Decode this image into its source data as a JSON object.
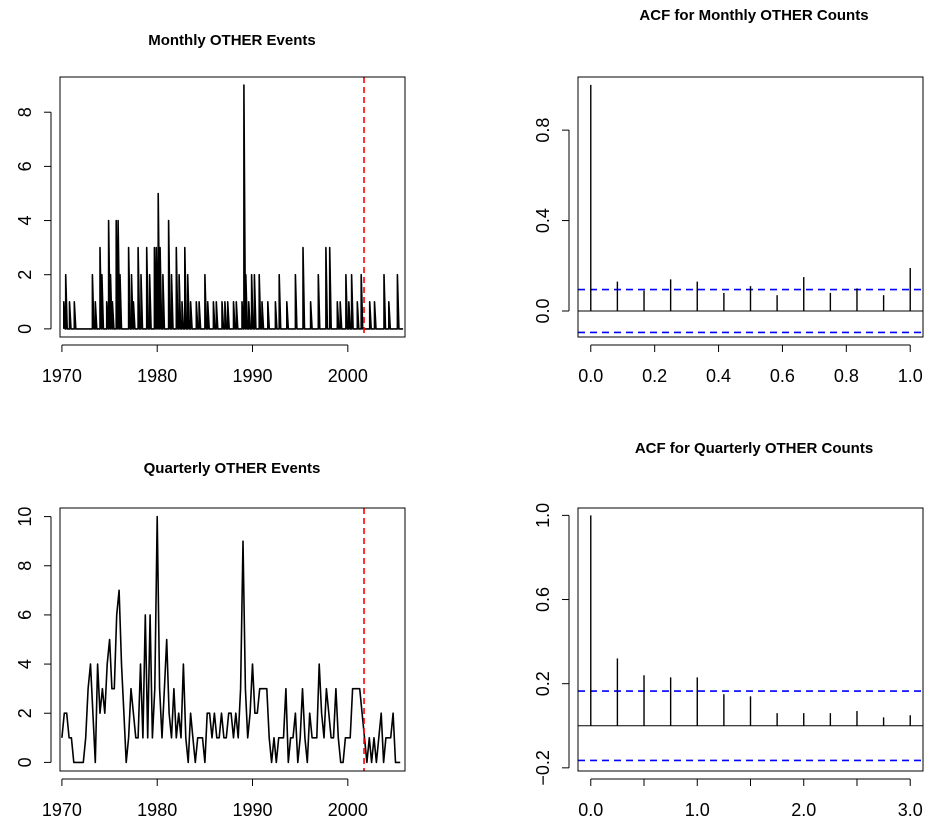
{
  "chart_data": [
    {
      "type": "line",
      "title": "Monthly OTHER Events",
      "xlabel": "",
      "ylabel": "",
      "xlim": [
        1969.8,
        2006.0
      ],
      "ylim": [
        -0.3,
        9.3
      ],
      "xticks": [
        1970,
        1980,
        1990,
        2000
      ],
      "xtick_labels": [
        "1970",
        "1980",
        "1990",
        "2000"
      ],
      "yticks": [
        0,
        2,
        4,
        6,
        8
      ],
      "ytick_labels": [
        "0",
        "2",
        "4",
        "6",
        "8"
      ],
      "series_style": "type-h-like spikes",
      "ref_line": {
        "x": 2001.7,
        "color": "#ff0000",
        "style": "dashed"
      },
      "x": [
        1970.2,
        1970.4,
        1970.6,
        1970.8,
        1971.0,
        1971.3,
        1972.9,
        1973.2,
        1973.5,
        1973.8,
        1974.0,
        1974.2,
        1974.5,
        1974.7,
        1974.9,
        1975.1,
        1975.3,
        1975.5,
        1975.7,
        1975.9,
        1976.1,
        1976.4,
        1976.7,
        1977.0,
        1977.3,
        1977.5,
        1977.8,
        1978.0,
        1978.3,
        1978.6,
        1978.9,
        1979.2,
        1979.4,
        1979.7,
        1979.9,
        1980.1,
        1980.3,
        1980.6,
        1980.9,
        1981.2,
        1981.5,
        1981.7,
        1982.0,
        1982.3,
        1982.6,
        1982.9,
        1983.2,
        1983.5,
        1983.8,
        1984.1,
        1984.4,
        1984.7,
        1985.0,
        1985.3,
        1985.6,
        1985.9,
        1986.2,
        1986.5,
        1986.8,
        1987.1,
        1987.4,
        1987.7,
        1988.0,
        1988.3,
        1988.6,
        1988.9,
        1989.1,
        1989.3,
        1989.6,
        1989.9,
        1990.2,
        1990.4,
        1990.7,
        1991.0,
        1991.3,
        1991.6,
        1992.0,
        1992.4,
        1992.8,
        1993.2,
        1993.6,
        1994.0,
        1994.5,
        1994.9,
        1995.3,
        1995.7,
        1996.1,
        1996.5,
        1996.9,
        1997.3,
        1997.7,
        1998.1,
        1998.5,
        1998.9,
        1999.2,
        1999.5,
        1999.8,
        2000.1,
        2000.4,
        2000.7,
        2001.0,
        2001.4,
        2001.8,
        2002.3,
        2002.8,
        2003.3,
        2003.8,
        2004.3,
        2004.8,
        2005.2,
        2005.6
      ],
      "y": [
        1,
        2,
        0,
        1,
        0,
        1,
        0,
        2,
        1,
        0,
        3,
        2,
        0,
        1,
        4,
        2,
        1,
        0,
        4,
        4,
        2,
        0,
        0,
        3,
        2,
        1,
        0,
        3,
        2,
        0,
        3,
        2,
        0,
        3,
        3,
        5,
        3,
        2,
        0,
        4,
        2,
        0,
        3,
        2,
        1,
        3,
        2,
        1,
        0,
        1,
        1,
        0,
        2,
        1,
        0,
        1,
        1,
        0,
        1,
        1,
        1,
        0,
        1,
        1,
        0,
        1,
        9,
        2,
        1,
        2,
        2,
        0,
        2,
        1,
        0,
        1,
        0,
        1,
        2,
        0,
        1,
        0,
        2,
        0,
        3,
        0,
        1,
        0,
        2,
        0,
        3,
        3,
        0,
        1,
        1,
        0,
        2,
        1,
        2,
        0,
        1,
        2,
        0,
        1,
        1,
        0,
        2,
        1,
        0,
        2,
        0
      ]
    },
    {
      "type": "bar",
      "title": "ACF for Monthly OTHER Counts",
      "xlabel": "",
      "ylabel": "",
      "xlim": [
        -0.04,
        1.04
      ],
      "ylim": [
        -0.115,
        1.035
      ],
      "xticks": [
        0.0,
        0.2,
        0.4,
        0.6,
        0.8,
        1.0
      ],
      "xtick_labels": [
        "0.0",
        "0.2",
        "0.4",
        "0.6",
        "0.8",
        "1.0"
      ],
      "yticks": [
        0.0,
        0.4,
        0.8
      ],
      "ytick_labels": [
        "0.0",
        "0.4",
        "0.8"
      ],
      "lags": [
        0,
        0.0833,
        0.1667,
        0.25,
        0.3333,
        0.4167,
        0.5,
        0.5833,
        0.6667,
        0.75,
        0.8333,
        0.9167,
        1.0
      ],
      "acf": [
        1.0,
        0.13,
        0.09,
        0.14,
        0.13,
        0.08,
        0.11,
        0.07,
        0.15,
        0.08,
        0.1,
        0.07,
        0.19
      ],
      "conf_limit": 0.095,
      "conf_color": "#0000ff"
    },
    {
      "type": "line",
      "title": "Quarterly OTHER Events",
      "xlabel": "",
      "ylabel": "",
      "xlim": [
        1969.8,
        2006.0
      ],
      "ylim": [
        -0.35,
        10.35
      ],
      "xticks": [
        1970,
        1980,
        1990,
        2000
      ],
      "xtick_labels": [
        "1970",
        "1980",
        "1990",
        "2000"
      ],
      "yticks": [
        0,
        2,
        4,
        6,
        8,
        10
      ],
      "ytick_labels": [
        "0",
        "2",
        "4",
        "6",
        "8",
        "10"
      ],
      "ref_line": {
        "x": 2001.7,
        "color": "#ff0000",
        "style": "dashed"
      },
      "x": [
        1970.0,
        1970.25,
        1970.5,
        1970.75,
        1971.0,
        1971.25,
        1971.5,
        1971.75,
        1972.0,
        1972.25,
        1972.5,
        1972.75,
        1973.0,
        1973.25,
        1973.5,
        1973.75,
        1974.0,
        1974.25,
        1974.5,
        1974.75,
        1975.0,
        1975.25,
        1975.5,
        1975.75,
        1976.0,
        1976.25,
        1976.5,
        1976.75,
        1977.0,
        1977.25,
        1977.5,
        1977.75,
        1978.0,
        1978.25,
        1978.5,
        1978.75,
        1979.0,
        1979.25,
        1979.5,
        1979.75,
        1980.0,
        1980.25,
        1980.5,
        1980.75,
        1981.0,
        1981.25,
        1981.5,
        1981.75,
        1982.0,
        1982.25,
        1982.5,
        1982.75,
        1983.0,
        1983.25,
        1983.5,
        1983.75,
        1984.0,
        1984.25,
        1984.5,
        1984.75,
        1985.0,
        1985.25,
        1985.5,
        1985.75,
        1986.0,
        1986.25,
        1986.5,
        1986.75,
        1987.0,
        1987.25,
        1987.5,
        1987.75,
        1988.0,
        1988.25,
        1988.5,
        1988.75,
        1989.0,
        1989.25,
        1989.5,
        1989.75,
        1990.0,
        1990.25,
        1990.5,
        1990.75,
        1991.0,
        1991.25,
        1991.5,
        1991.75,
        1992.0,
        1992.25,
        1992.5,
        1992.75,
        1993.0,
        1993.25,
        1993.5,
        1993.75,
        1994.0,
        1994.25,
        1994.5,
        1994.75,
        1995.0,
        1995.25,
        1995.5,
        1995.75,
        1996.0,
        1996.25,
        1996.5,
        1996.75,
        1997.0,
        1997.25,
        1997.5,
        1997.75,
        1998.0,
        1998.25,
        1998.5,
        1998.75,
        1999.0,
        1999.25,
        1999.5,
        1999.75,
        2000.0,
        2000.25,
        2000.5,
        2000.75,
        2001.0,
        2001.25,
        2001.5,
        2001.75,
        2002.0,
        2002.25,
        2002.5,
        2002.75,
        2003.0,
        2003.25,
        2003.5,
        2003.75,
        2004.0,
        2004.25,
        2004.5,
        2004.75,
        2005.0,
        2005.25,
        2005.5
      ],
      "y": [
        1,
        2,
        2,
        1,
        1,
        0,
        0,
        0,
        0,
        0,
        1,
        3,
        4,
        2,
        0,
        4,
        2,
        3,
        2,
        4,
        5,
        3,
        3,
        6,
        7,
        4,
        2,
        0,
        1,
        3,
        2,
        1,
        1,
        4,
        1,
        6,
        1,
        6,
        1,
        3,
        10,
        3,
        1,
        3,
        5,
        2,
        1,
        3,
        1,
        2,
        1,
        4,
        1,
        0,
        2,
        1,
        0,
        1,
        1,
        1,
        0,
        2,
        2,
        1,
        2,
        1,
        1,
        2,
        1,
        1,
        2,
        2,
        1,
        2,
        1,
        3,
        9,
        3,
        1,
        2,
        4,
        2,
        2,
        3,
        3,
        3,
        3,
        1,
        0,
        1,
        0,
        1,
        1,
        1,
        3,
        0,
        1,
        1,
        2,
        0,
        1,
        3,
        1,
        0,
        2,
        1,
        1,
        1,
        4,
        2,
        1,
        3,
        2,
        1,
        1,
        3,
        1,
        0,
        0,
        1,
        1,
        1,
        3,
        3,
        3,
        3,
        2,
        1,
        0,
        1,
        0,
        1,
        0,
        1,
        2,
        0,
        1,
        1,
        1,
        2,
        0,
        0,
        0
      ]
    },
    {
      "type": "bar",
      "title": "ACF for Quarterly OTHER Counts",
      "xlabel": "",
      "ylabel": "",
      "xlim": [
        -0.12,
        3.12
      ],
      "ylim": [
        -0.215,
        1.035
      ],
      "xticks": [
        0.0,
        0.5,
        1.0,
        1.5,
        2.0,
        2.5,
        3.0
      ],
      "xtick_labels": [
        "0.0",
        "1.0",
        "2.0",
        "3.0"
      ],
      "labeled_xticks": [
        0.0,
        1.0,
        2.0,
        3.0
      ],
      "yticks": [
        -0.2,
        0.2,
        0.6,
        1.0
      ],
      "ytick_labels": [
        "−0.2",
        "0.2",
        "0.6",
        "1.0"
      ],
      "lags": [
        0,
        0.25,
        0.5,
        0.75,
        1.0,
        1.25,
        1.5,
        1.75,
        2.0,
        2.25,
        2.5,
        2.75,
        3.0
      ],
      "acf": [
        1.0,
        0.32,
        0.24,
        0.23,
        0.23,
        0.15,
        0.14,
        0.06,
        0.06,
        0.06,
        0.07,
        0.04,
        0.05
      ],
      "conf_limit": 0.165,
      "conf_color": "#0000ff"
    }
  ]
}
